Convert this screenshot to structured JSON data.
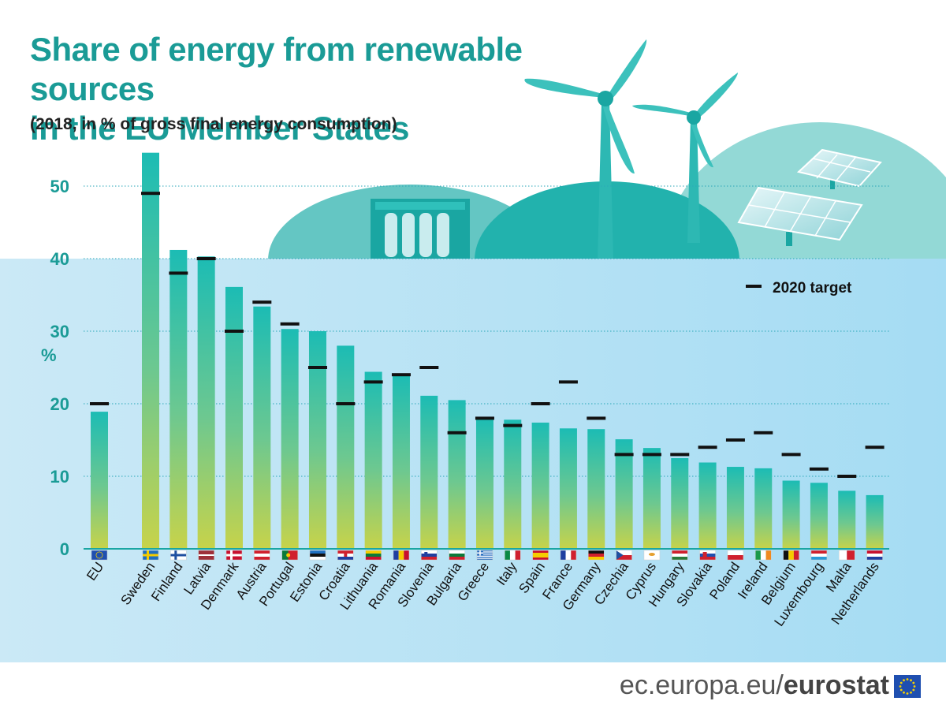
{
  "header": {
    "title_line1": "Share of energy from renewable sources",
    "title_line2": "in the EU Member States",
    "subtitle": "(2018, in % of gross final energy consumption)"
  },
  "footer": {
    "site": "ec.europa.eu/",
    "brand": "eurostat"
  },
  "colors": {
    "title": "#1a9b96",
    "bar_top": "#1cbcb4",
    "bar_bottom": "#c7d34a",
    "target_marker": "#111111",
    "panel_top": "#bfe3f3",
    "panel_right": "#a6dcf3"
  },
  "chart_data": {
    "type": "bar",
    "title": "Share of energy from renewable sources in the EU Member States",
    "subtitle": "(2018, in % of gross final energy consumption)",
    "ylabel": "%",
    "xlabel": "",
    "ylim": [
      0,
      55
    ],
    "yticks": [
      0,
      10,
      20,
      30,
      40,
      50
    ],
    "grid": true,
    "legend": {
      "position": "top-right",
      "entries": [
        "2020 target"
      ]
    },
    "categories": [
      "EU",
      "Sweden",
      "Finland",
      "Latvia",
      "Denmark",
      "Austria",
      "Portugal",
      "Estonia",
      "Croatia",
      "Lithuania",
      "Romania",
      "Slovenia",
      "Bulgaria",
      "Greece",
      "Italy",
      "Spain",
      "France",
      "Germany",
      "Czechia",
      "Cyprus",
      "Hungary",
      "Slovakia",
      "Poland",
      "Ireland",
      "Belgium",
      "Luxembourg",
      "Malta",
      "Netherlands"
    ],
    "series": [
      {
        "name": "",
        "values": [
          18.9,
          54.6,
          41.2,
          40.3,
          36.1,
          33.4,
          30.3,
          30.0,
          28.0,
          24.4,
          23.9,
          21.1,
          20.5,
          18.0,
          17.8,
          17.4,
          16.6,
          16.5,
          15.1,
          13.9,
          12.5,
          11.9,
          11.3,
          11.1,
          9.4,
          9.1,
          8.0,
          7.4
        ]
      },
      {
        "name": "2020 target",
        "values": [
          20,
          49,
          38,
          40,
          30,
          34,
          31,
          25,
          20,
          23,
          24,
          25,
          16,
          18,
          17,
          20,
          23,
          18,
          13,
          13,
          13,
          14,
          15,
          16,
          13,
          11,
          10,
          14
        ]
      }
    ]
  },
  "flags": {
    "EU": "eu",
    "Sweden": "se",
    "Finland": "fi",
    "Latvia": "lv",
    "Denmark": "dk",
    "Austria": "at",
    "Portugal": "pt",
    "Estonia": "ee",
    "Croatia": "hr",
    "Lithuania": "lt",
    "Romania": "ro",
    "Slovenia": "si",
    "Bulgaria": "bg",
    "Greece": "gr",
    "Italy": "it",
    "Spain": "es",
    "France": "fr",
    "Germany": "de",
    "Czechia": "cz",
    "Cyprus": "cy",
    "Hungary": "hu",
    "Slovakia": "sk",
    "Poland": "pl",
    "Ireland": "ie",
    "Belgium": "be",
    "Luxembourg": "lu",
    "Malta": "mt",
    "Netherlands": "nl"
  }
}
